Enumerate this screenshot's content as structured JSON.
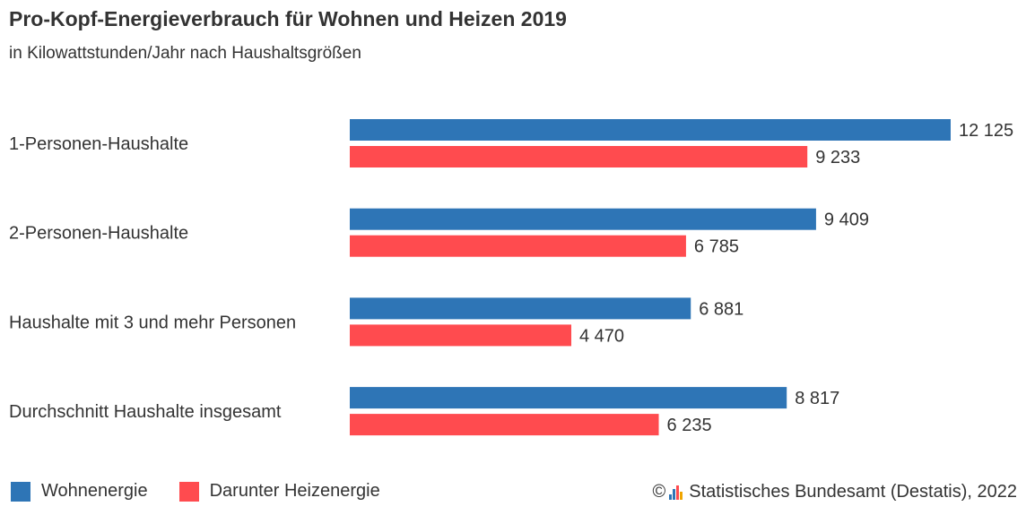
{
  "title": "Pro-Kopf-Energieverbrauch für Wohnen und Heizen 2019",
  "subtitle": "in Kilowattstunden/Jahr nach Haushaltsgrößen",
  "colors": {
    "series1": "#2e75b6",
    "series2": "#ff4b4f"
  },
  "legend": [
    "Wohnenergie",
    "Darunter Heizenergie"
  ],
  "source": {
    "copyright": "©",
    "text": "Statistisches Bundesamt (Destatis), 2022",
    "icon": "destatis-logo-icon"
  },
  "chart_data": {
    "type": "bar",
    "orientation": "horizontal",
    "title": "Pro-Kopf-Energieverbrauch für Wohnen und Heizen 2019",
    "subtitle": "in Kilowattstunden/Jahr nach Haushaltsgrößen",
    "categories": [
      "1-Personen-Haushalte",
      "2-Personen-Haushalte",
      "Haushalte mit 3 und mehr Personen",
      "Durchschnitt Haushalte insgesamt"
    ],
    "series": [
      {
        "name": "Wohnenergie",
        "values": [
          12125,
          9409,
          6881,
          8817
        ],
        "labels": [
          "12 125",
          "9 409",
          "6 881",
          "8 817"
        ]
      },
      {
        "name": "Darunter Heizenergie",
        "values": [
          9233,
          6785,
          4470,
          6235
        ],
        "labels": [
          "9 233",
          "6 785",
          "4 470",
          "6 235"
        ]
      }
    ],
    "xlim": [
      0,
      12125
    ],
    "grid": false,
    "legend_position": "bottom-left"
  }
}
